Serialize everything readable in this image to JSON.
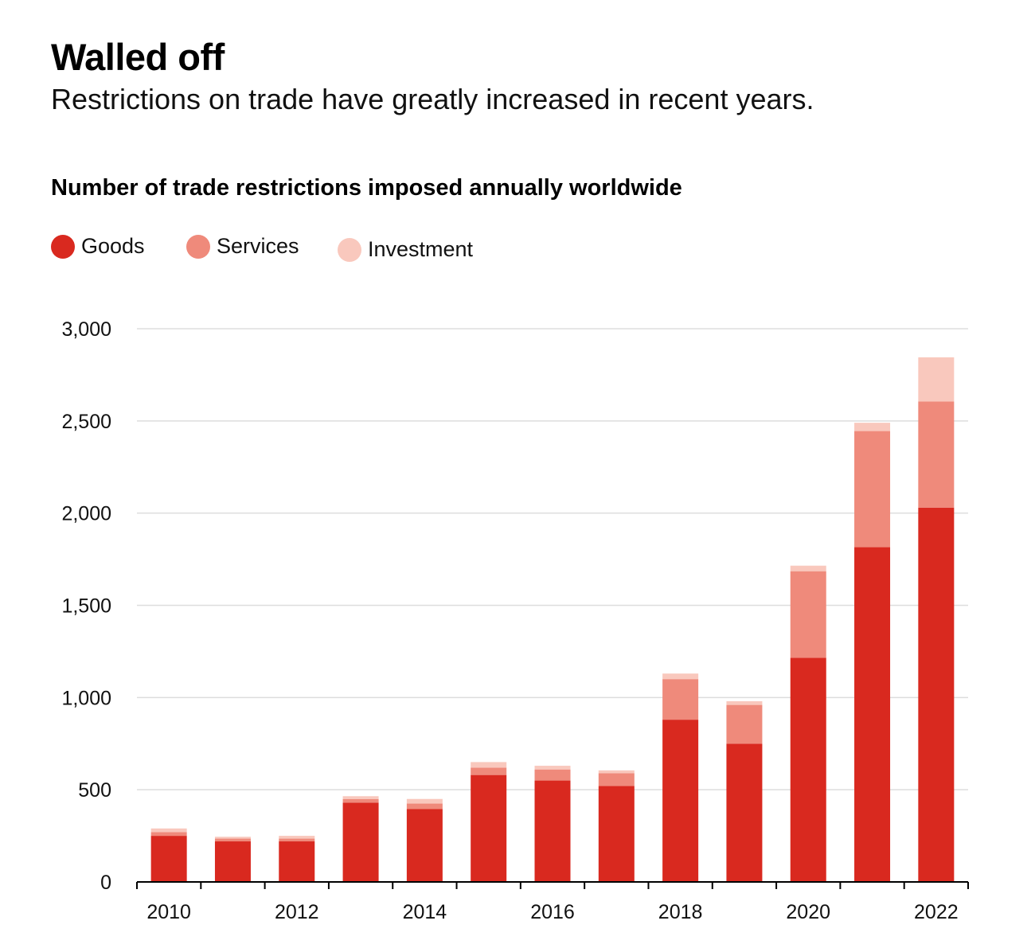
{
  "header": {
    "title": "Walled off",
    "subtitle": "Restrictions on trade have greatly increased in recent years."
  },
  "colors": {
    "goods": "#d9291f",
    "services": "#ef8a7b",
    "investment": "#f9c8bd",
    "grid": "#dddddd",
    "axis": "#000000"
  },
  "chart_data": {
    "type": "bar",
    "stacked": true,
    "title": "Number of trade restrictions imposed annually worldwide",
    "xlabel": "",
    "ylabel": "",
    "categories": [
      "2010",
      "2011",
      "2012",
      "2013",
      "2014",
      "2015",
      "2016",
      "2017",
      "2018",
      "2019",
      "2020",
      "2021",
      "2022"
    ],
    "x_tick_labels": [
      "2010",
      "",
      "2012",
      "",
      "2014",
      "",
      "2016",
      "",
      "2018",
      "",
      "2020",
      "",
      "2022"
    ],
    "y_ticks": [
      0,
      500,
      1000,
      1500,
      2000,
      2500,
      3000
    ],
    "y_tick_labels": [
      "0",
      "500",
      "1,000",
      "1,500",
      "2,000",
      "2,500",
      "3,000"
    ],
    "ylim": [
      0,
      3000
    ],
    "grid": true,
    "legend_position": "top-left",
    "series": [
      {
        "name": "Goods",
        "color_key": "goods",
        "values": [
          250,
          220,
          220,
          430,
          395,
          580,
          550,
          520,
          880,
          750,
          1215,
          1815,
          2030
        ]
      },
      {
        "name": "Services",
        "color_key": "services",
        "values": [
          20,
          15,
          15,
          20,
          30,
          40,
          60,
          70,
          220,
          210,
          470,
          630,
          575
        ]
      },
      {
        "name": "Investment",
        "color_key": "investment",
        "values": [
          20,
          10,
          15,
          15,
          25,
          30,
          20,
          15,
          30,
          20,
          30,
          45,
          240
        ]
      }
    ]
  }
}
